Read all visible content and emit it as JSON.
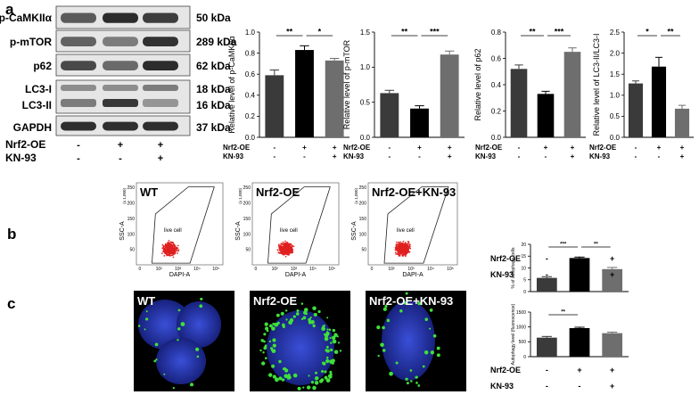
{
  "panels": {
    "a": "a",
    "b": "b",
    "c": "c"
  },
  "western_blot": {
    "bands": [
      {
        "protein": "p-CaMKIIα",
        "kda": "50 kDa"
      },
      {
        "protein": "p-mTOR",
        "kda": "289 kDa"
      },
      {
        "protein": "p62",
        "kda": "62 kDa"
      },
      {
        "protein": "LC3-I",
        "kda": "18 kDa"
      },
      {
        "protein": "LC3-II",
        "kda": "16 kDa"
      },
      {
        "protein": "GAPDH",
        "kda": "37 kDa"
      }
    ],
    "conditions": [
      {
        "label": "Nrf2-OE",
        "signs": [
          "-",
          "+",
          "+"
        ]
      },
      {
        "label": "KN-93",
        "signs": [
          "-",
          "-",
          "+"
        ]
      }
    ]
  },
  "chart_data": [
    {
      "type": "bar",
      "panel": "a",
      "ylabel": "Relative level of p-CaMKIIα",
      "ylim": [
        0,
        1.0
      ],
      "yticks": [
        "0.0",
        "0.2",
        "0.4",
        "0.6",
        "0.8",
        "1.0"
      ],
      "values": [
        0.59,
        0.83,
        0.73
      ],
      "errors": [
        0.05,
        0.04,
        0.02
      ],
      "colors": [
        "#3a3a3a",
        "#000000",
        "#6e6e6e"
      ],
      "significance": [
        {
          "from": 0,
          "to": 1,
          "label": "**"
        },
        {
          "from": 1,
          "to": 2,
          "label": "*"
        }
      ],
      "conditions": [
        {
          "label": "Nrf2-OE",
          "signs": [
            "-",
            "+",
            "+"
          ]
        },
        {
          "label": "KN-93",
          "signs": [
            "-",
            "-",
            "+"
          ]
        }
      ]
    },
    {
      "type": "bar",
      "panel": "a",
      "ylabel": "Relative level of p-mTOR",
      "ylim": [
        0,
        1.5
      ],
      "yticks": [
        "0.0",
        "0.5",
        "1.0",
        "1.5"
      ],
      "values": [
        0.63,
        0.41,
        1.18
      ],
      "errors": [
        0.04,
        0.04,
        0.05
      ],
      "colors": [
        "#3a3a3a",
        "#000000",
        "#6e6e6e"
      ],
      "significance": [
        {
          "from": 0,
          "to": 1,
          "label": "**"
        },
        {
          "from": 1,
          "to": 2,
          "label": "***"
        }
      ],
      "conditions": [
        {
          "label": "Nrf2-OE",
          "signs": [
            "-",
            "+",
            "+"
          ]
        },
        {
          "label": "KN-93",
          "signs": [
            "-",
            "-",
            "+"
          ]
        }
      ]
    },
    {
      "type": "bar",
      "panel": "a",
      "ylabel": "Relative level of p62",
      "ylim": [
        0,
        0.8
      ],
      "yticks": [
        "0.0",
        "0.2",
        "0.4",
        "0.6",
        "0.8"
      ],
      "values": [
        0.52,
        0.33,
        0.65
      ],
      "errors": [
        0.03,
        0.02,
        0.03
      ],
      "colors": [
        "#3a3a3a",
        "#000000",
        "#6e6e6e"
      ],
      "significance": [
        {
          "from": 0,
          "to": 1,
          "label": "**"
        },
        {
          "from": 1,
          "to": 2,
          "label": "***"
        }
      ],
      "conditions": [
        {
          "label": "Nrf2-OE",
          "signs": [
            "-",
            "+",
            "+"
          ]
        },
        {
          "label": "KN-93",
          "signs": [
            "-",
            "-",
            "+"
          ]
        }
      ]
    },
    {
      "type": "bar",
      "panel": "a",
      "ylabel": "Relative level of LC3-II/LC3-I",
      "ylim": [
        0,
        2.5
      ],
      "yticks": [
        "0.0",
        "0.5",
        "1.0",
        "1.5",
        "2.0",
        "2.5"
      ],
      "values": [
        1.28,
        1.68,
        0.68
      ],
      "errors": [
        0.06,
        0.22,
        0.08
      ],
      "colors": [
        "#3a3a3a",
        "#000000",
        "#6e6e6e"
      ],
      "significance": [
        {
          "from": 0,
          "to": 1,
          "label": "*"
        },
        {
          "from": 1,
          "to": 2,
          "label": "**"
        }
      ],
      "conditions": [
        {
          "label": "Nrf2-OE",
          "signs": [
            "-",
            "+",
            "+"
          ]
        },
        {
          "label": "KN-93",
          "signs": [
            "-",
            "-",
            "+"
          ]
        }
      ]
    },
    {
      "type": "bar",
      "panel": "b",
      "ylabel": "% of autophagy cells",
      "ylim": [
        0,
        20
      ],
      "yticks": [
        "0",
        "5",
        "10",
        "15",
        "20"
      ],
      "values": [
        5.8,
        14.2,
        9.5
      ],
      "errors": [
        0.5,
        0.4,
        0.7
      ],
      "colors": [
        "#3a3a3a",
        "#000000",
        "#6e6e6e"
      ],
      "significance": [
        {
          "from": 0,
          "to": 1,
          "label": "***"
        },
        {
          "from": 1,
          "to": 2,
          "label": "**"
        }
      ],
      "conditions": [
        {
          "label": "Nrf2-OE",
          "signs": [
            "-",
            "+",
            "+"
          ]
        },
        {
          "label": "KN-93",
          "signs": [
            "-",
            "-",
            "+"
          ]
        }
      ]
    },
    {
      "type": "bar",
      "panel": "c",
      "ylabel": "Autophagy level (fluorescence)",
      "ylim": [
        0,
        1500
      ],
      "yticks": [
        "0",
        "500",
        "1000",
        "1500"
      ],
      "values": [
        640,
        960,
        790
      ],
      "errors": [
        40,
        30,
        35
      ],
      "colors": [
        "#3a3a3a",
        "#000000",
        "#6e6e6e"
      ],
      "significance": [
        {
          "from": 0,
          "to": 1,
          "label": "**"
        }
      ],
      "conditions": [
        {
          "label": "Nrf2-OE",
          "signs": [
            "-",
            "+",
            "+"
          ]
        },
        {
          "label": "KN-93",
          "signs": [
            "-",
            "-",
            "+"
          ]
        }
      ]
    }
  ],
  "flow": {
    "plots": [
      {
        "title": "WT"
      },
      {
        "title": "Nrf2-OE"
      },
      {
        "title": "Nrf2-OE+KN-93"
      }
    ],
    "ylabel": "SSC-A",
    "xlabel": "DAPI-A",
    "scale_note": "(x 1,000)",
    "gate_label": "live cell",
    "yticks": [
      "50",
      "100",
      "150",
      "200",
      "250"
    ],
    "xticks": [
      "0",
      "10²",
      "10³",
      "10⁴",
      "10⁵"
    ]
  },
  "microscopy": {
    "images": [
      {
        "title": "WT"
      },
      {
        "title": "Nrf2-OE"
      },
      {
        "title": "Nrf2-OE+KN-93"
      }
    ]
  }
}
